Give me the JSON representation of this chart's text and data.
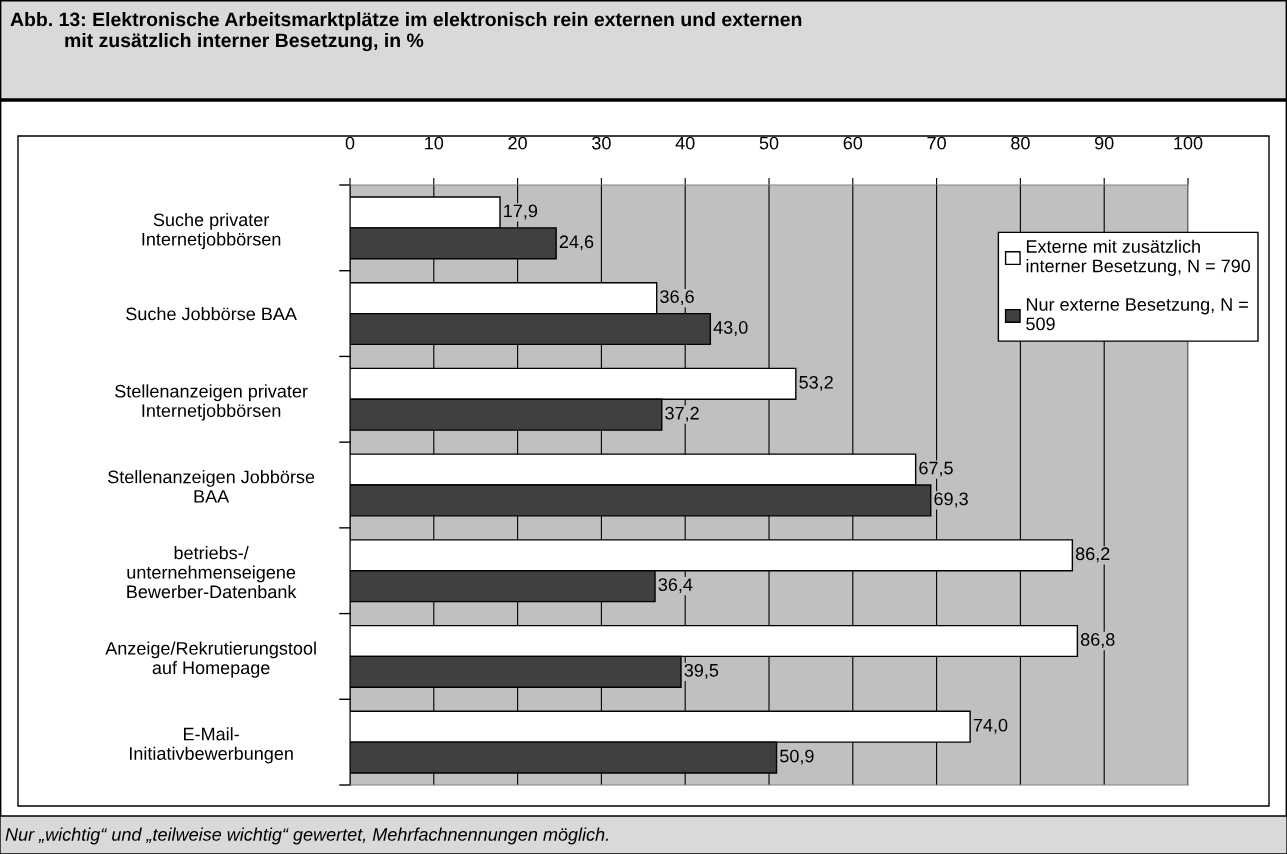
{
  "chart_data": {
    "type": "bar",
    "orientation": "horizontal",
    "title": "Abb. 13: Elektronische Arbeitsmarktplätze im elektronisch rein externen und externen\n          mit zusätzlich interner Besetzung, in %",
    "categories": [
      "Suche privater\nInternetjobbörsen",
      "Suche Jobbörse BAA",
      "Stellenanzeigen privater\nInternetjobbörsen",
      "Stellenanzeigen Jobbörse\nBAA",
      "betriebs-/\nunternehmenseigene\nBewerber-Datenbank",
      "Anzeige/Rekrutierungstool\nauf Homepage",
      "E-Mail-\nInitiativbewerbungen"
    ],
    "series": [
      {
        "name": "Externe mit zusätzlich\ninterner Besetzung, N = 790",
        "color": "#ffffff",
        "values": [
          17.9,
          36.6,
          53.2,
          67.5,
          86.2,
          86.8,
          74.0
        ],
        "value_labels": [
          "17,9",
          "36,6",
          "53,2",
          "67,5",
          "86,2",
          "86,8",
          "74,0"
        ]
      },
      {
        "name": "Nur externe Besetzung, N =\n509",
        "color": "#404040",
        "values": [
          24.6,
          43.0,
          37.2,
          69.3,
          36.4,
          39.5,
          50.9
        ],
        "value_labels": [
          "24,6",
          "43,0",
          "37,2",
          "69,3",
          "36,4",
          "39,5",
          "50,9"
        ]
      }
    ],
    "xlim": [
      0,
      100
    ],
    "xticks": [
      0,
      10,
      20,
      30,
      40,
      50,
      60,
      70,
      80,
      90,
      100
    ],
    "grid": "x",
    "legend": "top right",
    "annotations": [
      "Nur „wichtig“ und „teilweise wichtig“ gewertet, Mehrfachnennungen möglich."
    ]
  }
}
